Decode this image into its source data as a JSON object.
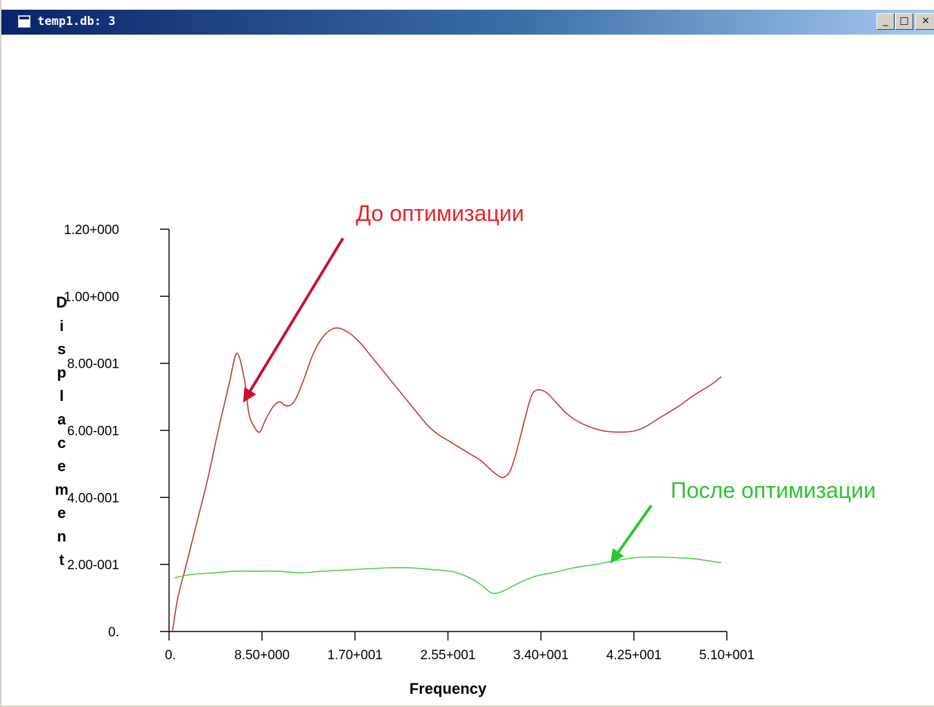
{
  "window": {
    "title": "temp1.db: 3",
    "controls": {
      "minimize": "_",
      "maximize": "□",
      "close": "×"
    }
  },
  "chart_data": {
    "type": "line",
    "xlabel": "Frequency",
    "ylabel": "Displacement",
    "xlim": [
      0,
      51
    ],
    "ylim": [
      0,
      1.2
    ],
    "x_ticks": [
      0,
      8.5,
      17,
      25.5,
      34,
      42.5,
      51
    ],
    "x_tick_labels": [
      "0.",
      "8.50+000",
      "1.70+001",
      "2.55+001",
      "3.40+001",
      "4.25+001",
      "5.10+001"
    ],
    "y_ticks": [
      0,
      0.2,
      0.4,
      0.6,
      0.8,
      1.0,
      1.2
    ],
    "y_tick_labels": [
      "0.",
      "2.00-001",
      "4.00-001",
      "6.00-001",
      "8.00-001",
      "1.00+000",
      "1.20+000"
    ],
    "grid": false,
    "series": [
      {
        "name": "До оптимизации",
        "color": "#c83030",
        "x": [
          0.3,
          0.8,
          1.5,
          2.5,
          3.5,
          4.5,
          5.5,
          6.2,
          6.9,
          7.3,
          7.8,
          8.3,
          8.8,
          9.5,
          10.1,
          10.6,
          11.1,
          11.6,
          12.3,
          13.2,
          14.1,
          14.8,
          15.5,
          16.5,
          17.5,
          18.5,
          19.5,
          20.5,
          21.5,
          22.5,
          23.5,
          24.5,
          25.5,
          26.5,
          27.5,
          28.5,
          29.5,
          30.1,
          30.6,
          31.2,
          31.8,
          32.5,
          33.1,
          33.6,
          34.4,
          35.2,
          36.2,
          37.2,
          38.5,
          40.0,
          41.5,
          42.5,
          43.5,
          45.0,
          46.5,
          48.0,
          49.5,
          50.5
        ],
        "y": [
          0.0,
          0.1,
          0.19,
          0.32,
          0.45,
          0.6,
          0.74,
          0.83,
          0.75,
          0.65,
          0.61,
          0.595,
          0.63,
          0.67,
          0.685,
          0.675,
          0.675,
          0.695,
          0.75,
          0.83,
          0.88,
          0.9,
          0.905,
          0.89,
          0.86,
          0.82,
          0.78,
          0.74,
          0.7,
          0.66,
          0.62,
          0.59,
          0.57,
          0.55,
          0.53,
          0.51,
          0.48,
          0.465,
          0.46,
          0.48,
          0.54,
          0.63,
          0.7,
          0.72,
          0.715,
          0.69,
          0.655,
          0.63,
          0.61,
          0.597,
          0.595,
          0.598,
          0.61,
          0.64,
          0.67,
          0.705,
          0.735,
          0.76
        ]
      },
      {
        "name": "После оптимизации",
        "color": "#45d045",
        "x": [
          0.5,
          2.0,
          4.0,
          6.0,
          8.0,
          10.0,
          12.0,
          14.0,
          16.0,
          18.0,
          20.0,
          22.0,
          24.0,
          26.0,
          27.5,
          28.5,
          29.5,
          30.5,
          32.0,
          33.5,
          35.0,
          37.0,
          39.0,
          40.5,
          41.5,
          42.5,
          43.5,
          45.0,
          46.5,
          48.0,
          49.5,
          50.5
        ],
        "y": [
          0.16,
          0.17,
          0.175,
          0.18,
          0.18,
          0.18,
          0.175,
          0.18,
          0.183,
          0.187,
          0.19,
          0.19,
          0.185,
          0.178,
          0.16,
          0.14,
          0.115,
          0.12,
          0.145,
          0.165,
          0.175,
          0.19,
          0.2,
          0.21,
          0.215,
          0.22,
          0.222,
          0.222,
          0.22,
          0.217,
          0.21,
          0.205
        ]
      }
    ],
    "annotations": [
      {
        "text": "До оптимизации",
        "color": "#e8242a",
        "arrow_color": "#c8102e",
        "points_to": [
          6.9,
          0.69
        ]
      },
      {
        "text": "После оптимизации",
        "color": "#2ec42e",
        "arrow_color": "#2ec42e",
        "points_to": [
          40.5,
          0.21
        ]
      }
    ]
  }
}
